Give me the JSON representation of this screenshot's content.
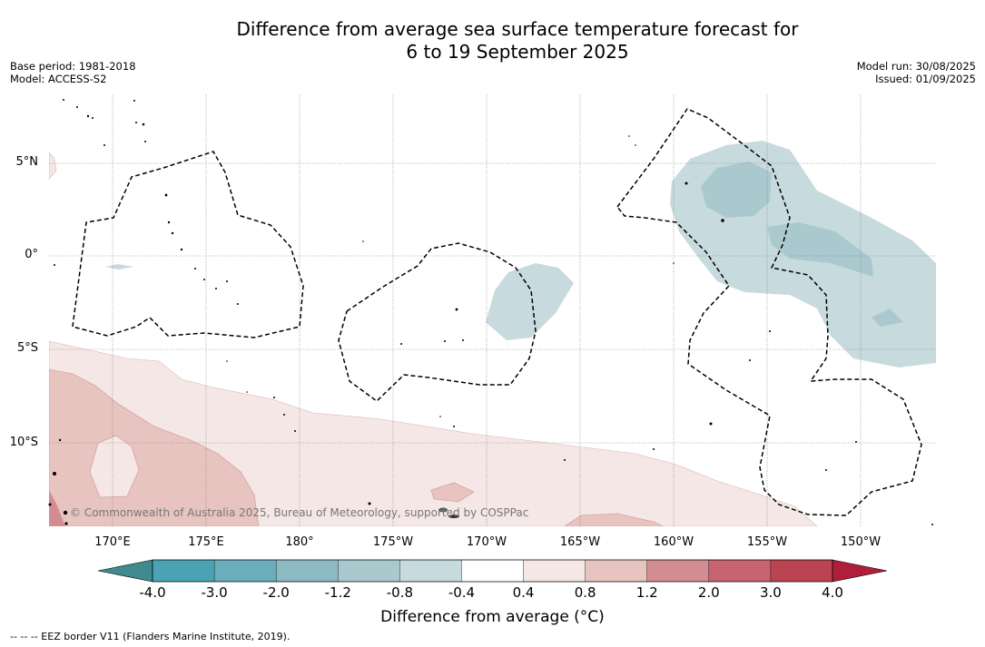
{
  "title": {
    "line1": "Difference from average sea surface temperature forecast for",
    "line2": "6 to 19 September 2025"
  },
  "meta_left": {
    "base_period": "Base period: 1981-2018",
    "model": "Model: ACCESS-S2"
  },
  "meta_right": {
    "model_run": "Model run: 30/08/2025",
    "issued": "Issued: 01/09/2025"
  },
  "map": {
    "latitude_labels": [
      "5°N",
      "0°",
      "5°S",
      "10°S"
    ],
    "longitude_labels": [
      "170°E",
      "175°E",
      "180°",
      "175°W",
      "170°W",
      "165°W",
      "160°W",
      "155°W",
      "150°W"
    ],
    "copyright": "© Commonwealth of Australia 2025, Bureau of Meteorology, supported by COSPPac",
    "gridlines": true,
    "eez_border_style": "dashed"
  },
  "colorbar": {
    "tick_labels": [
      "-4.0",
      "-3.0",
      "-2.0",
      "-1.2",
      "-0.8",
      "-0.4",
      "0.4",
      "0.8",
      "1.2",
      "2.0",
      "3.0",
      "4.0"
    ],
    "colors": [
      "#4aa3b4",
      "#6aadbb",
      "#8bbac3",
      "#aac9ce",
      "#c7dadd",
      "#ffffff",
      "#f5e7e6",
      "#e7c4bf",
      "#d48c93",
      "#c76470",
      "#bb4453"
    ],
    "low_extend_color": "#3f8a8e",
    "high_extend_color": "#b01e3a",
    "title": "Difference from average ($^\\circ$C)",
    "title_display": "Difference from average (°C)"
  },
  "legend_footer": "--  --  -- EEZ border V11 (Flanders Marine Institute, 2019)."
}
